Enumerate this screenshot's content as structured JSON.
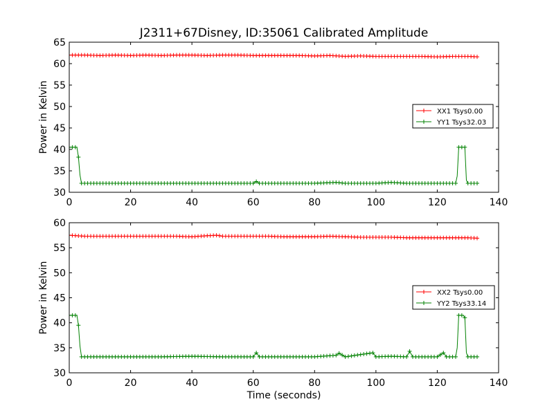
{
  "page_title": "J2311+67Disney, ID:35061 Calibrated Amplitude",
  "x_label": "Time (seconds)",
  "chart_data": [
    {
      "type": "line",
      "title": "J2311+67Disney, ID:35061 Calibrated Amplitude",
      "xlabel": "",
      "ylabel": "Power in Kelvin",
      "xlim": [
        0,
        140
      ],
      "ylim": [
        30,
        65
      ],
      "x_ticks": [
        0,
        20,
        40,
        60,
        80,
        100,
        120,
        140
      ],
      "y_ticks": [
        30,
        35,
        40,
        45,
        50,
        55,
        60,
        65
      ],
      "legend_position": "right",
      "series": [
        {
          "name": "XX1 Tsys0.00",
          "color": "#ff0000",
          "marker": "plus",
          "x": [
            0,
            5,
            10,
            15,
            20,
            25,
            30,
            35,
            40,
            45,
            50,
            55,
            60,
            65,
            70,
            75,
            80,
            85,
            90,
            95,
            100,
            105,
            110,
            115,
            120,
            125,
            130,
            133
          ],
          "y": [
            62.0,
            62.0,
            61.9,
            62.0,
            61.9,
            62.0,
            61.9,
            62.0,
            62.0,
            61.9,
            62.0,
            62.0,
            61.9,
            61.9,
            61.9,
            61.9,
            61.8,
            61.9,
            61.7,
            61.8,
            61.7,
            61.7,
            61.7,
            61.7,
            61.6,
            61.7,
            61.7,
            61.6
          ]
        },
        {
          "name": "YY1 Tsys32.03",
          "color": "#008000",
          "marker": "plus",
          "x": [
            0,
            0.5,
            1,
            1.5,
            2,
            2.5,
            3,
            3.5,
            4,
            10,
            20,
            30,
            40,
            50,
            60,
            61,
            62,
            70,
            80,
            87,
            90,
            100,
            105,
            110,
            120,
            126,
            126.5,
            127,
            127.5,
            128,
            128.5,
            129,
            129.5,
            130,
            131,
            133
          ],
          "y": [
            40.5,
            40.5,
            40.5,
            40.5,
            40.5,
            40.5,
            38.2,
            34.0,
            32.1,
            32.1,
            32.1,
            32.1,
            32.1,
            32.1,
            32.1,
            32.5,
            32.1,
            32.1,
            32.1,
            32.3,
            32.1,
            32.1,
            32.3,
            32.1,
            32.1,
            32.1,
            33.8,
            40.5,
            40.5,
            40.5,
            40.5,
            40.5,
            32.8,
            32.1,
            32.1,
            32.1
          ]
        }
      ]
    },
    {
      "type": "line",
      "title": "",
      "xlabel": "Time (seconds)",
      "ylabel": "Power in Kelvin",
      "xlim": [
        0,
        140
      ],
      "ylim": [
        30,
        60
      ],
      "x_ticks": [
        0,
        20,
        40,
        60,
        80,
        100,
        120,
        140
      ],
      "y_ticks": [
        30,
        35,
        40,
        45,
        50,
        55,
        60
      ],
      "legend_position": "right",
      "series": [
        {
          "name": "XX2 Tsys0.00",
          "color": "#ff0000",
          "marker": "plus",
          "x": [
            0,
            5,
            10,
            15,
            20,
            25,
            30,
            35,
            40,
            45,
            48,
            50,
            55,
            60,
            65,
            70,
            75,
            80,
            85,
            90,
            95,
            100,
            105,
            110,
            115,
            120,
            125,
            130,
            133
          ],
          "y": [
            57.5,
            57.3,
            57.3,
            57.3,
            57.3,
            57.3,
            57.3,
            57.3,
            57.2,
            57.4,
            57.5,
            57.3,
            57.3,
            57.3,
            57.3,
            57.2,
            57.2,
            57.2,
            57.3,
            57.2,
            57.1,
            57.1,
            57.1,
            57.0,
            57.0,
            57.0,
            57.0,
            57.0,
            56.9
          ]
        },
        {
          "name": "YY2 Tsys33.14",
          "color": "#008000",
          "marker": "plus",
          "x": [
            0,
            0.5,
            1,
            1.5,
            2,
            2.5,
            3,
            3.5,
            4,
            10,
            20,
            30,
            40,
            50,
            60,
            61,
            62,
            70,
            80,
            87,
            88,
            90,
            99,
            100,
            105,
            110,
            111,
            112,
            120,
            122,
            123,
            126,
            126.5,
            127,
            127.5,
            128,
            128.5,
            129,
            129.5,
            130,
            131,
            133
          ],
          "y": [
            41.5,
            41.5,
            41.5,
            41.5,
            41.5,
            41.5,
            39.5,
            35.3,
            33.2,
            33.2,
            33.2,
            33.2,
            33.3,
            33.2,
            33.2,
            34.0,
            33.2,
            33.2,
            33.2,
            33.5,
            33.9,
            33.2,
            34.0,
            33.2,
            33.3,
            33.2,
            34.3,
            33.2,
            33.2,
            34.0,
            33.2,
            33.2,
            35.0,
            41.5,
            41.5,
            41.5,
            41.5,
            41.0,
            34.0,
            33.2,
            33.2,
            33.2
          ]
        }
      ]
    }
  ]
}
